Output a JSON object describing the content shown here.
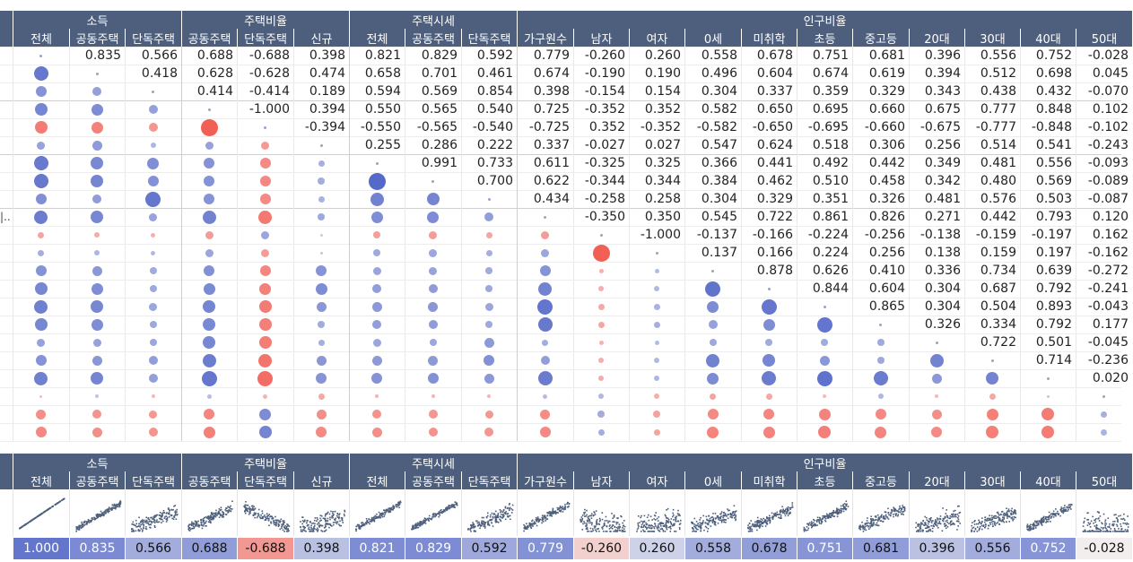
{
  "groups": [
    {
      "label": "소득",
      "span": 3
    },
    {
      "label": "주택비율",
      "span": 3
    },
    {
      "label": "주택시세",
      "span": 3
    },
    {
      "label": "인구비율",
      "span": 11
    }
  ],
  "columns": [
    "전체",
    "공동주택",
    "단독주택",
    "공동주택",
    "단독주택",
    "신규",
    "전체",
    "공동주택",
    "단독주택",
    "가구원수",
    "남자",
    "여자",
    "0세",
    "미취학",
    "초등",
    "중고등",
    "20대",
    "30대",
    "40대",
    "50대"
  ],
  "row_label_stub": "|..",
  "matrix": [
    [
      null,
      0.835,
      0.566,
      0.688,
      -0.688,
      0.398,
      0.821,
      0.829,
      0.592,
      0.779,
      -0.26,
      0.26,
      0.558,
      0.678,
      0.751,
      0.681,
      0.396,
      0.556,
      0.752,
      -0.028
    ],
    [
      0.835,
      null,
      0.418,
      0.628,
      -0.628,
      0.474,
      0.658,
      0.701,
      0.461,
      0.674,
      -0.19,
      0.19,
      0.496,
      0.604,
      0.674,
      0.619,
      0.394,
      0.512,
      0.698,
      0.045
    ],
    [
      0.566,
      0.418,
      null,
      0.414,
      -0.414,
      0.189,
      0.594,
      0.569,
      0.854,
      0.398,
      -0.154,
      0.154,
      0.304,
      0.337,
      0.359,
      0.329,
      0.343,
      0.438,
      0.432,
      -0.07
    ],
    [
      0.688,
      0.628,
      0.414,
      null,
      -1.0,
      0.394,
      0.55,
      0.565,
      0.54,
      0.725,
      -0.352,
      0.352,
      0.582,
      0.65,
      0.695,
      0.66,
      0.675,
      0.777,
      0.848,
      0.102
    ],
    [
      -0.688,
      -0.628,
      -0.414,
      -1.0,
      null,
      -0.394,
      -0.55,
      -0.565,
      -0.54,
      -0.725,
      0.352,
      -0.352,
      -0.582,
      -0.65,
      -0.695,
      -0.66,
      -0.675,
      -0.777,
      -0.848,
      -0.102
    ],
    [
      0.398,
      0.474,
      0.189,
      0.394,
      -0.394,
      null,
      0.255,
      0.286,
      0.222,
      0.337,
      -0.027,
      0.027,
      0.547,
      0.624,
      0.518,
      0.306,
      0.256,
      0.514,
      0.541,
      -0.243
    ],
    [
      0.821,
      0.658,
      0.594,
      0.55,
      -0.55,
      0.255,
      null,
      0.991,
      0.733,
      0.611,
      -0.325,
      0.325,
      0.366,
      0.441,
      0.492,
      0.442,
      0.349,
      0.481,
      0.556,
      -0.093
    ],
    [
      0.829,
      0.701,
      0.569,
      0.565,
      -0.565,
      0.286,
      0.991,
      null,
      0.7,
      0.622,
      -0.344,
      0.344,
      0.384,
      0.462,
      0.51,
      0.458,
      0.342,
      0.48,
      0.569,
      -0.089
    ],
    [
      0.592,
      0.461,
      0.854,
      0.54,
      -0.54,
      0.222,
      0.733,
      0.7,
      null,
      0.434,
      -0.258,
      0.258,
      0.304,
      0.329,
      0.351,
      0.326,
      0.481,
      0.576,
      0.503,
      -0.087
    ],
    [
      0.779,
      0.674,
      0.398,
      0.725,
      -0.725,
      0.337,
      0.611,
      0.622,
      0.434,
      null,
      -0.35,
      0.35,
      0.545,
      0.722,
      0.861,
      0.826,
      0.271,
      0.442,
      0.793,
      0.12
    ],
    [
      -0.26,
      -0.19,
      -0.154,
      -0.352,
      0.352,
      -0.027,
      -0.325,
      -0.344,
      -0.258,
      -0.35,
      null,
      -1.0,
      -0.137,
      -0.166,
      -0.224,
      -0.256,
      -0.138,
      -0.159,
      -0.197,
      0.162
    ],
    [
      0.26,
      0.19,
      0.154,
      0.352,
      -0.352,
      0.027,
      0.325,
      0.344,
      0.258,
      0.35,
      -1.0,
      null,
      0.137,
      0.166,
      0.224,
      0.256,
      0.138,
      0.159,
      0.197,
      -0.162
    ],
    [
      0.558,
      0.496,
      0.304,
      0.582,
      -0.582,
      0.547,
      0.366,
      0.384,
      0.304,
      0.545,
      -0.137,
      0.137,
      null,
      0.878,
      0.626,
      0.41,
      0.336,
      0.734,
      0.639,
      -0.272
    ],
    [
      0.678,
      0.604,
      0.337,
      0.65,
      -0.65,
      0.624,
      0.441,
      0.462,
      0.329,
      0.722,
      -0.166,
      0.166,
      0.878,
      null,
      0.844,
      0.604,
      0.304,
      0.687,
      0.792,
      -0.241
    ],
    [
      0.751,
      0.674,
      0.359,
      0.695,
      -0.695,
      0.518,
      0.492,
      0.51,
      0.351,
      0.861,
      -0.224,
      0.224,
      0.626,
      0.844,
      null,
      0.865,
      0.304,
      0.504,
      0.893,
      -0.043
    ],
    [
      0.681,
      0.619,
      0.329,
      0.66,
      -0.66,
      0.306,
      0.442,
      0.458,
      0.326,
      0.826,
      -0.256,
      0.256,
      0.41,
      0.604,
      0.865,
      null,
      0.326,
      0.334,
      0.792,
      0.177
    ],
    [
      0.396,
      0.394,
      0.343,
      0.675,
      -0.675,
      0.256,
      0.349,
      0.342,
      0.481,
      0.271,
      -0.138,
      0.138,
      0.336,
      0.304,
      0.304,
      0.326,
      null,
      0.722,
      0.501,
      -0.045
    ],
    [
      0.556,
      0.512,
      0.438,
      0.777,
      -0.777,
      0.514,
      0.481,
      0.48,
      0.576,
      0.442,
      -0.159,
      0.159,
      0.734,
      0.687,
      0.504,
      0.334,
      0.722,
      null,
      0.714,
      -0.236
    ],
    [
      0.752,
      0.698,
      0.432,
      0.848,
      -0.848,
      0.541,
      0.556,
      0.569,
      0.503,
      0.793,
      -0.197,
      0.197,
      0.639,
      0.792,
      0.893,
      0.792,
      0.501,
      0.714,
      null,
      0.02
    ],
    [
      -0.028,
      0.045,
      -0.07,
      0.102,
      -0.102,
      -0.243,
      -0.093,
      -0.089,
      -0.087,
      0.12,
      0.162,
      -0.162,
      -0.272,
      -0.241,
      -0.043,
      0.177,
      -0.045,
      -0.236,
      0.02,
      null
    ],
    [
      -0.5,
      -0.45,
      -0.4,
      -0.58,
      0.62,
      -0.5,
      -0.45,
      -0.42,
      -0.4,
      -0.52,
      0.3,
      -0.3,
      -0.55,
      -0.58,
      -0.62,
      -0.56,
      -0.5,
      -0.64,
      -0.68,
      0.25
    ],
    [
      -0.56,
      -0.5,
      -0.44,
      -0.64,
      0.7,
      -0.55,
      -0.5,
      -0.46,
      -0.42,
      -0.56,
      0.28,
      -0.28,
      -0.6,
      -0.62,
      -0.66,
      -0.6,
      -0.54,
      -0.66,
      -0.7,
      0.22
    ]
  ],
  "summary": [
    "1.000",
    "0.835",
    "0.566",
    "0.688",
    "-0.688",
    "0.398",
    "0.821",
    "0.829",
    "0.592",
    "0.779",
    "-0.260",
    "0.260",
    "0.558",
    "0.678",
    "0.751",
    "0.681",
    "0.396",
    "0.556",
    "0.752",
    "-0.028"
  ],
  "summary_values": [
    1.0,
    0.835,
    0.566,
    0.688,
    -0.688,
    0.398,
    0.821,
    0.829,
    0.592,
    0.779,
    -0.26,
    0.26,
    0.558,
    0.678,
    0.751,
    0.681,
    0.396,
    0.556,
    0.752,
    -0.028
  ],
  "colors": {
    "header_bg": "#4d5f7c",
    "positive": "#5468c8",
    "negative": "#f25f55",
    "neutral": "#d7d7d7",
    "scatter": "#4d5f7c"
  }
}
